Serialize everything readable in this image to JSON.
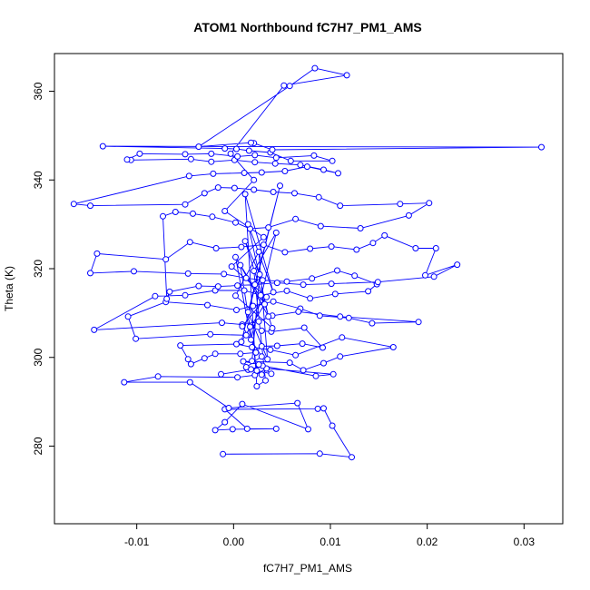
{
  "chart_data": {
    "type": "line",
    "title": "ATOM1 Northbound fC7H7_PM1_AMS",
    "xlabel": "fC7H7_PM1_AMS",
    "ylabel": "Theta (K)",
    "xlim": [
      -0.0185,
      0.034
    ],
    "ylim": [
      262.5,
      368.5
    ],
    "xticks": [
      -0.01,
      0.0,
      0.01,
      0.02,
      0.03
    ],
    "xtick_labels": [
      "-0.01",
      "0.00",
      "0.01",
      "0.02",
      "0.03"
    ],
    "yticks": [
      280,
      300,
      320,
      340,
      360
    ],
    "ytick_labels": [
      "280",
      "300",
      "320",
      "340",
      "360"
    ],
    "grid": false,
    "series": [
      {
        "color": "#0000ff",
        "marker": "open-circle",
        "points": [
          [
            -0.0011,
            278.2
          ],
          [
            0.0089,
            278.3
          ],
          [
            0.0122,
            277.5
          ],
          [
            0.0102,
            284.6
          ],
          [
            0.0093,
            288.5
          ],
          [
            0.0087,
            288.4
          ],
          [
            -0.0009,
            288.3
          ],
          [
            0.0014,
            283.9
          ],
          [
            0.0044,
            283.9
          ],
          [
            -0.0001,
            283.8
          ],
          [
            -0.0019,
            283.6
          ],
          [
            -0.0009,
            285.4
          ],
          [
            0.0009,
            289.5
          ],
          [
            0.0077,
            283.8
          ],
          [
            0.0066,
            289.7
          ],
          [
            -0.0005,
            288.6
          ],
          [
            -0.0045,
            294.4
          ],
          [
            -0.0113,
            294.4
          ],
          [
            -0.0078,
            295.7
          ],
          [
            0.0004,
            295.5
          ],
          [
            0.0022,
            296.0
          ],
          [
            0.0034,
            297.5
          ],
          [
            0.0103,
            296.2
          ],
          [
            0.0085,
            295.8
          ],
          [
            0.003,
            298.1
          ],
          [
            0.0015,
            297.2
          ],
          [
            -0.0013,
            296.2
          ],
          [
            0.0018,
            297.3
          ],
          [
            0.0039,
            296.3
          ],
          [
            0.0026,
            298.4
          ],
          [
            0.001,
            299.1
          ],
          [
            0.0058,
            298.8
          ],
          [
            0.0072,
            297.1
          ],
          [
            0.0093,
            298.7
          ],
          [
            0.011,
            300.2
          ],
          [
            0.0165,
            302.3
          ],
          [
            0.0112,
            304.5
          ],
          [
            0.0064,
            300.5
          ],
          [
            0.0038,
            301.7
          ],
          [
            0.0019,
            302.3
          ],
          [
            0.0003,
            303.0
          ],
          [
            -0.0055,
            302.7
          ],
          [
            -0.0047,
            299.6
          ],
          [
            -0.0044,
            298.5
          ],
          [
            -0.003,
            299.8
          ],
          [
            -0.0019,
            300.8
          ],
          [
            0.0007,
            300.8
          ],
          [
            0.0023,
            301.1
          ],
          [
            0.0029,
            302.5
          ],
          [
            0.0045,
            302.6
          ],
          [
            0.0071,
            303.1
          ],
          [
            0.0092,
            302.2
          ],
          [
            0.0073,
            306.7
          ],
          [
            0.0039,
            305.8
          ],
          [
            0.0029,
            306.0
          ],
          [
            0.0017,
            306.9
          ],
          [
            0.0013,
            305.0
          ],
          [
            -0.0024,
            305.2
          ],
          [
            -0.0101,
            304.2
          ],
          [
            -0.0109,
            309.2
          ],
          [
            -0.007,
            312.5
          ],
          [
            -0.0027,
            311.8
          ],
          [
            0.0003,
            310.7
          ],
          [
            0.002,
            311.6
          ],
          [
            0.0041,
            312.6
          ],
          [
            0.0069,
            311.0
          ],
          [
            0.0089,
            309.4
          ],
          [
            0.0119,
            308.9
          ],
          [
            0.0143,
            307.7
          ],
          [
            0.0191,
            308.0
          ],
          [
            0.011,
            309.2
          ],
          [
            0.0067,
            310.3
          ],
          [
            0.004,
            309.4
          ],
          [
            0.0026,
            308.1
          ],
          [
            0.0009,
            307.4
          ],
          [
            -0.0012,
            307.8
          ],
          [
            -0.0144,
            306.2
          ],
          [
            -0.0081,
            313.8
          ],
          [
            -0.005,
            314.0
          ],
          [
            -0.0019,
            315.1
          ],
          [
            0.0011,
            315.1
          ],
          [
            0.0028,
            314.0
          ],
          [
            0.0055,
            315.0
          ],
          [
            0.0079,
            313.3
          ],
          [
            0.0105,
            314.3
          ],
          [
            0.0139,
            314.9
          ],
          [
            0.0148,
            316.5
          ],
          [
            0.0125,
            318.4
          ],
          [
            0.0107,
            319.6
          ],
          [
            0.0081,
            317.8
          ],
          [
            0.0055,
            317.1
          ],
          [
            0.003,
            317.4
          ],
          [
            0.0013,
            317.9
          ],
          [
            -0.001,
            318.8
          ],
          [
            -0.0047,
            318.9
          ],
          [
            -0.0103,
            319.4
          ],
          [
            -0.0148,
            319.0
          ],
          [
            -0.0141,
            323.4
          ],
          [
            -0.007,
            322.1
          ],
          [
            -0.0045,
            326.0
          ],
          [
            -0.0018,
            324.6
          ],
          [
            0.0008,
            324.9
          ],
          [
            0.0031,
            325.4
          ],
          [
            0.0053,
            323.7
          ],
          [
            0.0079,
            324.5
          ],
          [
            0.0101,
            325.0
          ],
          [
            0.0127,
            324.3
          ],
          [
            0.0144,
            325.8
          ],
          [
            0.0156,
            327.5
          ],
          [
            0.0188,
            324.6
          ],
          [
            0.0209,
            324.6
          ],
          [
            0.0198,
            318.5
          ],
          [
            0.0231,
            320.9
          ],
          [
            0.0207,
            318.2
          ],
          [
            0.0149,
            317.0
          ],
          [
            0.0101,
            316.6
          ],
          [
            0.0072,
            316.4
          ],
          [
            0.0045,
            316.8
          ],
          [
            0.0022,
            316.4
          ],
          [
            0.0004,
            316.2
          ],
          [
            -0.0016,
            316.0
          ],
          [
            -0.0036,
            316.1
          ],
          [
            -0.0066,
            314.8
          ],
          [
            -0.0069,
            313.2
          ],
          [
            -0.0073,
            331.8
          ],
          [
            -0.006,
            332.8
          ],
          [
            -0.0042,
            332.4
          ],
          [
            -0.0022,
            331.7
          ],
          [
            0.0002,
            330.4
          ],
          [
            0.0017,
            329.0
          ],
          [
            0.0036,
            329.3
          ],
          [
            0.0064,
            331.2
          ],
          [
            0.009,
            329.6
          ],
          [
            0.0131,
            329.1
          ],
          [
            0.0181,
            332.0
          ],
          [
            0.0202,
            334.8
          ],
          [
            0.0172,
            334.6
          ],
          [
            0.011,
            334.2
          ],
          [
            0.0088,
            336.1
          ],
          [
            0.0063,
            337.0
          ],
          [
            0.0041,
            337.3
          ],
          [
            0.0021,
            337.8
          ],
          [
            0.0001,
            338.2
          ],
          [
            -0.0016,
            338.3
          ],
          [
            -0.003,
            337.0
          ],
          [
            -0.005,
            334.5
          ],
          [
            -0.0148,
            334.2
          ],
          [
            -0.0165,
            334.6
          ],
          [
            -0.0046,
            340.9
          ],
          [
            -0.0021,
            341.4
          ],
          [
            0.0011,
            341.6
          ],
          [
            0.0029,
            341.7
          ],
          [
            0.0053,
            342.0
          ],
          [
            0.0076,
            343.0
          ],
          [
            0.0108,
            341.5
          ],
          [
            0.0093,
            342.3
          ],
          [
            0.0069,
            343.4
          ],
          [
            0.0043,
            343.7
          ],
          [
            0.0022,
            344.0
          ],
          [
            0.0001,
            344.5
          ],
          [
            -0.0023,
            344.1
          ],
          [
            -0.0044,
            344.7
          ],
          [
            -0.0106,
            344.5
          ],
          [
            -0.011,
            344.6
          ],
          [
            -0.0097,
            345.9
          ],
          [
            -0.005,
            345.8
          ],
          [
            -0.0023,
            345.9
          ],
          [
            0.0004,
            345.3
          ],
          [
            0.0022,
            345.6
          ],
          [
            0.0044,
            345.0
          ],
          [
            0.0083,
            345.5
          ],
          [
            0.0102,
            344.3
          ],
          [
            0.0059,
            344.3
          ],
          [
            0.0038,
            346.2
          ],
          [
            0.0016,
            346.6
          ],
          [
            0.0003,
            347.0
          ],
          [
            -0.0009,
            347.1
          ],
          [
            -0.0135,
            347.6
          ],
          [
            0.0318,
            347.4
          ],
          [
            0.004,
            346.8
          ],
          [
            0.0021,
            348.3
          ],
          [
            0.0018,
            348.4
          ],
          [
            -0.0036,
            347.5
          ],
          [
            0.0058,
            361.2
          ],
          [
            0.0084,
            365.2
          ],
          [
            0.0117,
            363.6
          ],
          [
            0.0052,
            361.3
          ],
          [
            -0.0003,
            345.9
          ],
          [
            0.0021,
            340.0
          ],
          [
            -0.0009,
            333.0
          ],
          [
            0.0031,
            327.1
          ],
          [
            -0.0002,
            320.5
          ],
          [
            0.0034,
            313.6
          ],
          [
            0.0009,
            307.0
          ],
          [
            0.0029,
            300.2
          ],
          [
            0.0013,
            297.8
          ],
          [
            0.0029,
            296.1
          ],
          [
            0.0024,
            297.0
          ],
          [
            0.0007,
            320.8
          ],
          [
            0.0036,
            309.2
          ],
          [
            0.0015,
            330.0
          ],
          [
            0.0041,
            314.7
          ],
          [
            0.0012,
            336.8
          ],
          [
            0.0024,
            293.5
          ],
          [
            0.0033,
            294.8
          ],
          [
            0.0021,
            319.5
          ],
          [
            0.0044,
            328.1
          ],
          [
            0.0018,
            304.0
          ],
          [
            0.0002,
            322.6
          ],
          [
            0.0032,
            312.0
          ],
          [
            0.0008,
            303.5
          ],
          [
            0.0048,
            338.7
          ],
          [
            0.0015,
            310.2
          ],
          [
            0.0035,
            299.6
          ],
          [
            0.0026,
            323.8
          ],
          [
            0.0002,
            313.9
          ],
          [
            0.004,
            306.6
          ],
          [
            0.0012,
            326.2
          ],
          [
            0.0027,
            318.7
          ],
          [
            0.0019,
            299.2
          ]
        ]
      }
    ]
  }
}
